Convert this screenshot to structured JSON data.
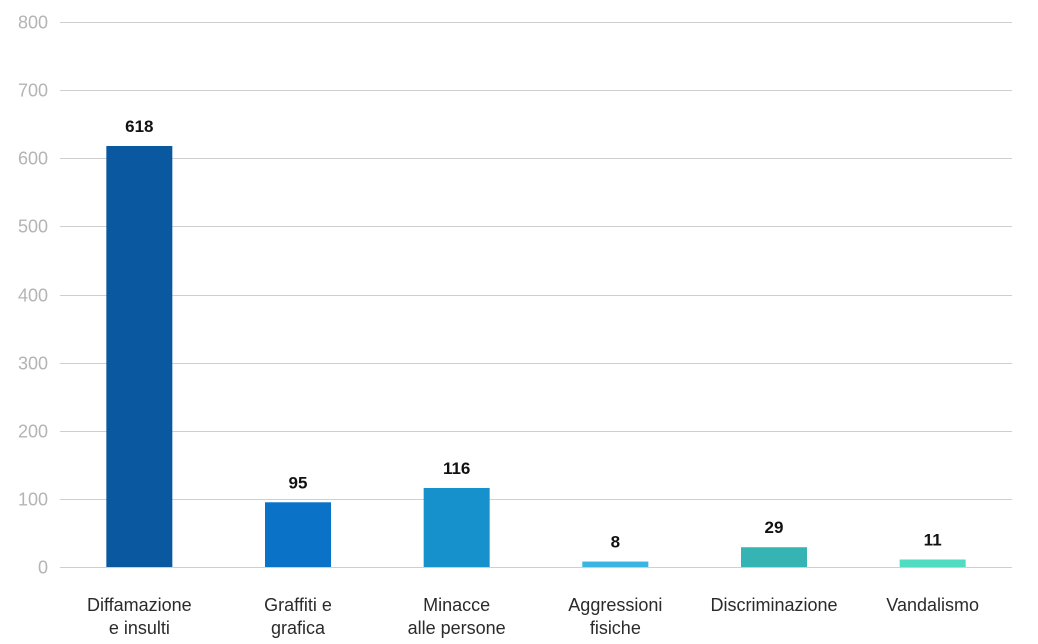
{
  "chart_data": {
    "type": "bar",
    "title": "",
    "xlabel": "",
    "ylabel": "",
    "ylim": [
      0,
      800
    ],
    "yticks": [
      0,
      100,
      200,
      300,
      400,
      500,
      600,
      700,
      800
    ],
    "yticks_labels": [
      "0",
      "100",
      "200",
      "300",
      "400",
      "500",
      "600",
      "700",
      "800"
    ],
    "grid": true,
    "categories": [
      [
        "Diffamazione",
        "e insulti"
      ],
      [
        "Graffiti e",
        "grafica"
      ],
      [
        "Minacce",
        "alle persone"
      ],
      [
        "Aggressioni",
        "fisiche"
      ],
      [
        "Discriminazione"
      ],
      [
        "Vandalismo"
      ]
    ],
    "values": [
      618,
      95,
      116,
      8,
      29,
      11
    ],
    "value_labels": [
      "618",
      "95",
      "116",
      "8",
      "29",
      "11"
    ],
    "colors": [
      "#0a58a0",
      "#0a72c7",
      "#1791cc",
      "#39b4e3",
      "#36b3b3",
      "#4fdcc1"
    ]
  }
}
